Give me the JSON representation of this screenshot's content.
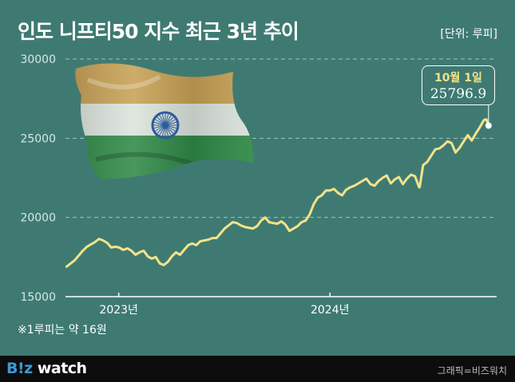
{
  "title": "인도 니프티50 지수 최근 3년 추이",
  "unit": "[단위: 루피]",
  "footnote": "※1루피는 약 16원",
  "footer": {
    "logo": "B!z watch",
    "credit": "그래픽=비즈워치"
  },
  "colors": {
    "background": "#3f7a72",
    "line": "#f2e38a",
    "grid": "#9ec3bc",
    "footer": "#0c0c0c"
  },
  "chart_data": {
    "type": "line",
    "title": "인도 니프티50 지수 최근 3년 추이",
    "ylabel": "",
    "ylim": [
      15000,
      30000
    ],
    "y_ticks": [
      15000,
      20000,
      25000,
      30000
    ],
    "y_tick_labels": [
      "15000",
      "20000",
      "25000",
      "30000"
    ],
    "x_tick_labels": [
      {
        "label": "2023년",
        "x": "2023-01-01"
      },
      {
        "label": "2024년",
        "x": "2024-01-01"
      }
    ],
    "xlim": [
      "2022-10-01",
      "2024-10-15"
    ],
    "grid": true,
    "annotation": {
      "date_label": "10월 1일",
      "value_label": "25796.9",
      "x": "2024-10-01",
      "y": 25796.9
    },
    "series": [
      {
        "points": [
          [
            "2022-10-03",
            16900
          ],
          [
            "2022-10-10",
            17100
          ],
          [
            "2022-10-17",
            17300
          ],
          [
            "2022-10-24",
            17600
          ],
          [
            "2022-10-31",
            17900
          ],
          [
            "2022-11-07",
            18150
          ],
          [
            "2022-11-14",
            18300
          ],
          [
            "2022-11-21",
            18450
          ],
          [
            "2022-11-28",
            18650
          ],
          [
            "2022-12-05",
            18550
          ],
          [
            "2022-12-12",
            18400
          ],
          [
            "2022-12-19",
            18100
          ],
          [
            "2022-12-26",
            18150
          ],
          [
            "2023-01-02",
            18100
          ],
          [
            "2023-01-09",
            17950
          ],
          [
            "2023-01-16",
            18050
          ],
          [
            "2023-01-23",
            17900
          ],
          [
            "2023-01-30",
            17650
          ],
          [
            "2023-02-06",
            17800
          ],
          [
            "2023-02-13",
            17900
          ],
          [
            "2023-02-20",
            17550
          ],
          [
            "2023-02-27",
            17400
          ],
          [
            "2023-03-06",
            17500
          ],
          [
            "2023-03-13",
            17100
          ],
          [
            "2023-03-20",
            17000
          ],
          [
            "2023-03-27",
            17200
          ],
          [
            "2023-04-03",
            17550
          ],
          [
            "2023-04-10",
            17800
          ],
          [
            "2023-04-17",
            17650
          ],
          [
            "2023-04-24",
            17950
          ],
          [
            "2023-05-01",
            18250
          ],
          [
            "2023-05-08",
            18350
          ],
          [
            "2023-05-15",
            18250
          ],
          [
            "2023-05-22",
            18500
          ],
          [
            "2023-05-29",
            18550
          ],
          [
            "2023-06-05",
            18600
          ],
          [
            "2023-06-12",
            18700
          ],
          [
            "2023-06-19",
            18700
          ],
          [
            "2023-06-26",
            19000
          ],
          [
            "2023-07-03",
            19300
          ],
          [
            "2023-07-10",
            19500
          ],
          [
            "2023-07-17",
            19700
          ],
          [
            "2023-07-24",
            19650
          ],
          [
            "2023-07-31",
            19500
          ],
          [
            "2023-08-07",
            19400
          ],
          [
            "2023-08-14",
            19350
          ],
          [
            "2023-08-21",
            19300
          ],
          [
            "2023-08-28",
            19450
          ],
          [
            "2023-09-04",
            19800
          ],
          [
            "2023-09-11",
            20000
          ],
          [
            "2023-09-18",
            19700
          ],
          [
            "2023-09-25",
            19650
          ],
          [
            "2023-10-02",
            19600
          ],
          [
            "2023-10-09",
            19750
          ],
          [
            "2023-10-16",
            19550
          ],
          [
            "2023-10-23",
            19150
          ],
          [
            "2023-10-30",
            19300
          ],
          [
            "2023-11-06",
            19450
          ],
          [
            "2023-11-13",
            19700
          ],
          [
            "2023-11-20",
            19800
          ],
          [
            "2023-11-27",
            20200
          ],
          [
            "2023-12-04",
            20850
          ],
          [
            "2023-12-11",
            21250
          ],
          [
            "2023-12-18",
            21400
          ],
          [
            "2023-12-25",
            21700
          ],
          [
            "2024-01-01",
            21700
          ],
          [
            "2024-01-08",
            21800
          ],
          [
            "2024-01-15",
            21550
          ],
          [
            "2024-01-22",
            21400
          ],
          [
            "2024-01-29",
            21750
          ],
          [
            "2024-02-05",
            21900
          ],
          [
            "2024-02-12",
            22000
          ],
          [
            "2024-02-19",
            22150
          ],
          [
            "2024-02-26",
            22300
          ],
          [
            "2024-03-04",
            22450
          ],
          [
            "2024-03-11",
            22100
          ],
          [
            "2024-03-18",
            22000
          ],
          [
            "2024-03-25",
            22300
          ],
          [
            "2024-04-01",
            22500
          ],
          [
            "2024-04-08",
            22650
          ],
          [
            "2024-04-15",
            22150
          ],
          [
            "2024-04-22",
            22400
          ],
          [
            "2024-04-29",
            22550
          ],
          [
            "2024-05-06",
            22100
          ],
          [
            "2024-05-13",
            22450
          ],
          [
            "2024-05-20",
            22700
          ],
          [
            "2024-05-27",
            22600
          ],
          [
            "2024-06-03",
            21900
          ],
          [
            "2024-06-04",
            21900
          ],
          [
            "2024-06-10",
            23300
          ],
          [
            "2024-06-17",
            23500
          ],
          [
            "2024-06-24",
            23900
          ],
          [
            "2024-07-01",
            24300
          ],
          [
            "2024-07-08",
            24350
          ],
          [
            "2024-07-15",
            24550
          ],
          [
            "2024-07-22",
            24800
          ],
          [
            "2024-07-29",
            24700
          ],
          [
            "2024-08-05",
            24100
          ],
          [
            "2024-08-12",
            24400
          ],
          [
            "2024-08-19",
            24800
          ],
          [
            "2024-08-26",
            25200
          ],
          [
            "2024-09-02",
            24850
          ],
          [
            "2024-09-09",
            25300
          ],
          [
            "2024-09-16",
            25700
          ],
          [
            "2024-09-23",
            26150
          ],
          [
            "2024-09-27",
            26200
          ],
          [
            "2024-10-01",
            25796.9
          ]
        ]
      }
    ]
  }
}
